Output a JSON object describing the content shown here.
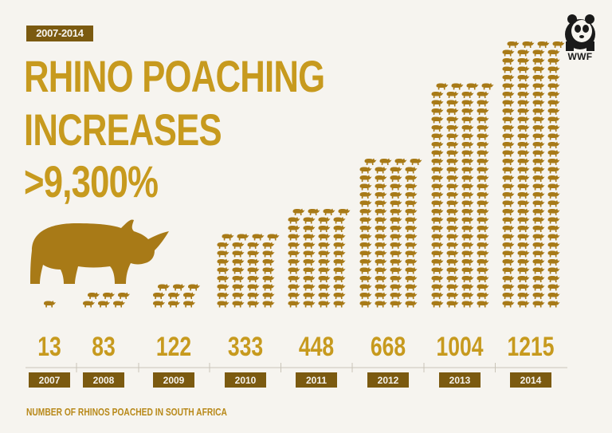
{
  "badge": "2007-2014",
  "headline": {
    "line1": "RHINO POACHING",
    "line2": "INCREASES",
    "line3": ">9,300%"
  },
  "logo": {
    "text": "WWF"
  },
  "footer": "NUMBER OF RHINOS POACHED IN SOUTH AFRICA",
  "colors": {
    "accent": "#c79a1e",
    "dark": "#7b5a10",
    "icon": "#a87a17",
    "background": "#f6f4ef"
  },
  "chart_data": {
    "type": "bar",
    "title": "",
    "xlabel": "",
    "ylabel": "",
    "categories": [
      "2007",
      "2008",
      "2009",
      "2010",
      "2011",
      "2012",
      "2013",
      "2014"
    ],
    "values": [
      13,
      83,
      122,
      333,
      448,
      668,
      1004,
      1215
    ],
    "value_labels": [
      "13",
      "83",
      "122",
      "333",
      "448",
      "668",
      "1004",
      "1215"
    ],
    "mark": "rhino-icon",
    "ylim": [
      0,
      1215
    ],
    "grid": false
  }
}
